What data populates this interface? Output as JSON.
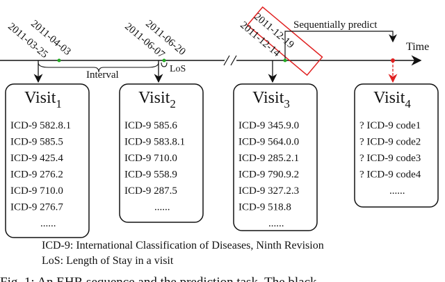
{
  "timeline": {
    "time_label": "Time",
    "interval_label": "Interval",
    "los_label": "LoS",
    "predict_label": "Sequentially predict",
    "date_pairs": [
      {
        "end": "2011-04-03",
        "start": "2011-03-25"
      },
      {
        "end": "2011-06-20",
        "start": "2011-06-07"
      },
      {
        "end": "2011-12-19",
        "start": "2011-12-14"
      }
    ]
  },
  "visits": [
    {
      "title": "Visit",
      "index": "1",
      "codes": [
        "ICD-9 582.8.1",
        "ICD-9 585.5",
        "ICD-9 425.4",
        "ICD-9 276.2",
        "ICD-9 710.0",
        "ICD-9 276.7",
        "......"
      ]
    },
    {
      "title": "Visit",
      "index": "2",
      "codes": [
        "ICD-9 585.6",
        "ICD-9 583.8.1",
        "ICD-9 710.0",
        "ICD-9 558.9",
        "ICD-9 287.5",
        "......"
      ]
    },
    {
      "title": "Visit",
      "index": "3",
      "codes": [
        "ICD-9 345.9.0",
        "ICD-9 564.0.0",
        "ICD-9 285.2.1",
        "ICD-9 790.9.2",
        "ICD-9 327.2.3",
        "ICD-9 518.8",
        "......"
      ]
    },
    {
      "title": "Visit",
      "index": "4",
      "codes": [
        "? ICD-9 code1",
        "? ICD-9 code2",
        "? ICD-9 code3",
        "? ICD-9 code4",
        "......"
      ]
    }
  ],
  "legend": [
    "ICD-9: International Classification of Diseases, Ninth Revision",
    "LoS: Length of Stay in a visit"
  ],
  "caption": "Fig. 1: An EHR sequence and the prediction task. The black"
}
